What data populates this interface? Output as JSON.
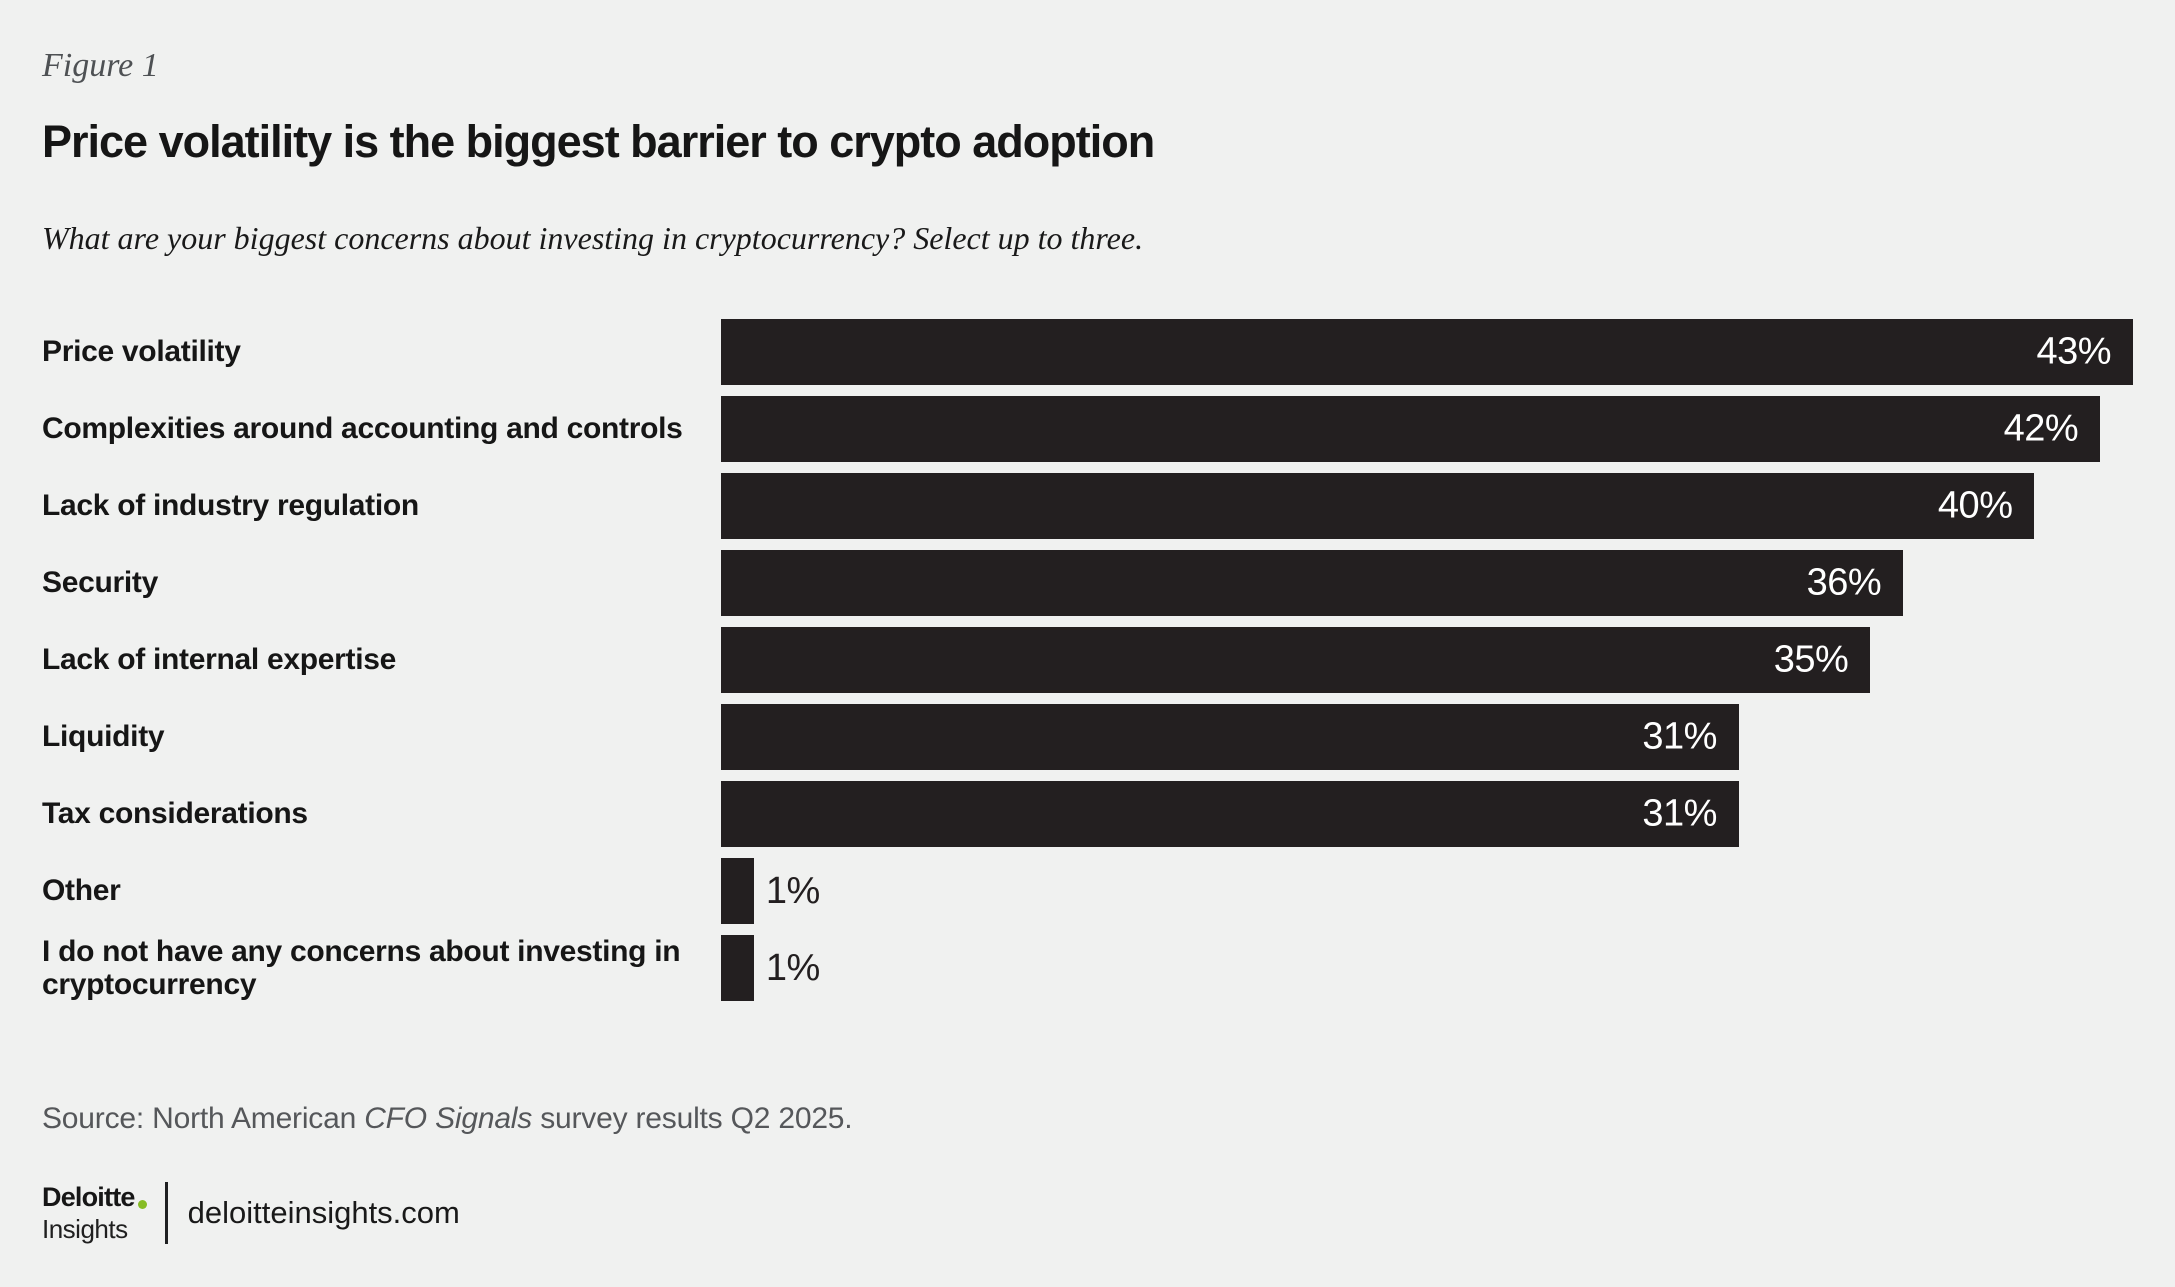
{
  "figure_label": "Figure 1",
  "chart_data": {
    "type": "bar",
    "orientation": "horizontal",
    "title": "Price volatility is the biggest barrier to crypto adoption",
    "subtitle": "What are your biggest concerns about investing in cryptocurrency? Select up to three.",
    "categories": [
      "Price volatility",
      "Complexities around accounting and controls",
      "Lack of industry regulation",
      "Security",
      "Lack of internal expertise",
      "Liquidity",
      "Tax considerations",
      "Other",
      "I do not have any concerns about investing in cryptocurrency"
    ],
    "values": [
      43,
      42,
      40,
      36,
      35,
      31,
      31,
      1,
      1
    ],
    "value_suffix": "%",
    "xlim": [
      0,
      43
    ],
    "grid": false,
    "legend": "none",
    "axis_labels": "none",
    "bar_color": "#231f20",
    "value_label_color_inside": "#ffffff",
    "value_label_color_outside": "#231f20"
  },
  "source": {
    "prefix": "Source: North American ",
    "italic": "CFO Signals",
    "suffix": " survey results Q2 2025."
  },
  "footer": {
    "brand_top": "Deloitte",
    "brand_bottom": "Insights",
    "url": "deloitteinsights.com"
  },
  "colors": {
    "background": "#f0f1f0",
    "bar": "#231f20",
    "accent_green": "#86bc25",
    "muted_text": "#55575a",
    "text": "#161616"
  }
}
